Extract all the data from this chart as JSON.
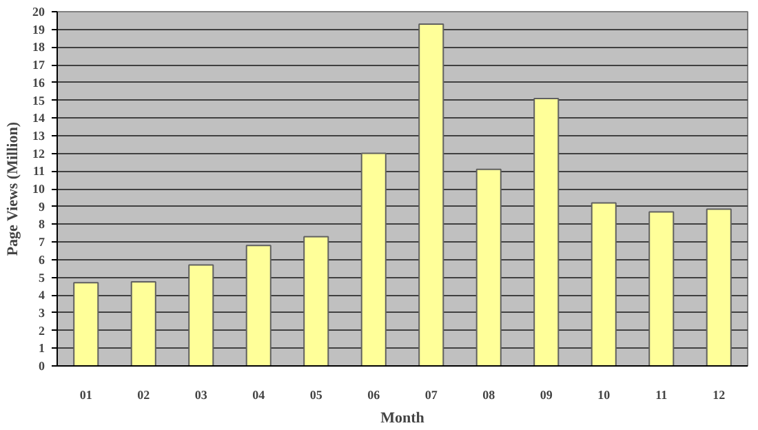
{
  "chart_data": {
    "type": "bar",
    "xlabel": "Month",
    "ylabel": "Page Views (Million)",
    "categories": [
      "01",
      "02",
      "03",
      "04",
      "05",
      "06",
      "07",
      "08",
      "09",
      "10",
      "11",
      "12"
    ],
    "values": [
      4.7,
      4.75,
      5.7,
      6.8,
      7.3,
      12.0,
      19.3,
      11.1,
      15.1,
      9.2,
      8.7,
      8.85
    ],
    "color": "#ffff99",
    "ylim": [
      0,
      20
    ],
    "yticks": [
      0,
      1,
      2,
      3,
      4,
      5,
      6,
      7,
      8,
      9,
      10,
      11,
      12,
      13,
      14,
      15,
      16,
      17,
      18,
      19,
      20
    ],
    "grid": "y"
  }
}
